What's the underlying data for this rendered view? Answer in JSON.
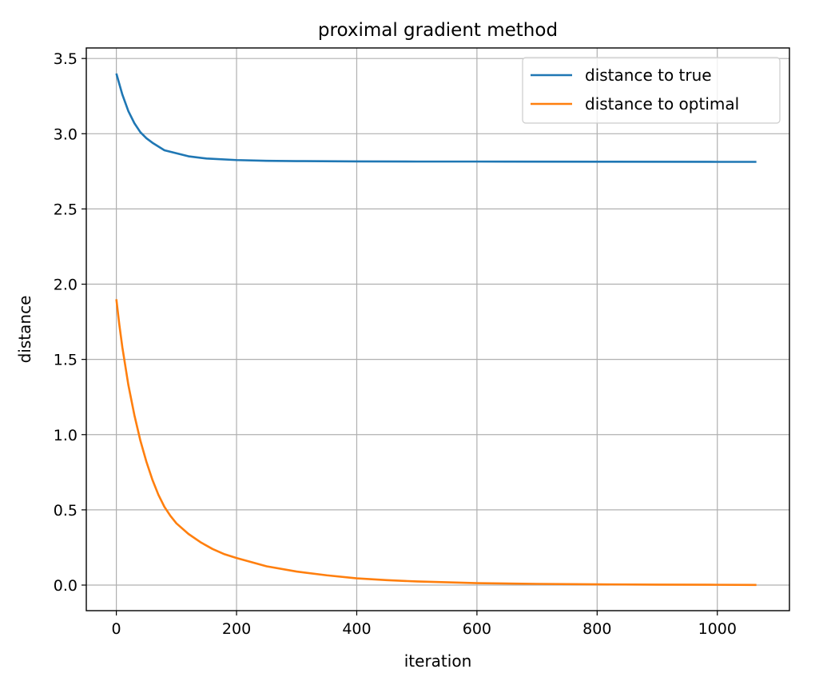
{
  "chart_data": {
    "type": "line",
    "title": "proximal gradient method",
    "xlabel": "iteration",
    "ylabel": "distance",
    "xlim": [
      -50,
      1120
    ],
    "ylim": [
      -0.17,
      3.57
    ],
    "xticks": [
      0,
      200,
      400,
      600,
      800,
      1000
    ],
    "yticks": [
      0.0,
      0.5,
      1.0,
      1.5,
      2.0,
      2.5,
      3.0,
      3.5
    ],
    "xtick_labels": [
      "0",
      "200",
      "400",
      "600",
      "800",
      "1000"
    ],
    "ytick_labels": [
      "0.0",
      "0.5",
      "1.0",
      "1.5",
      "2.0",
      "2.5",
      "3.0",
      "3.5"
    ],
    "grid": true,
    "legend_position": "upper right",
    "series": [
      {
        "name": "distance to true",
        "color": "#1f77b4",
        "x": [
          0,
          10,
          20,
          30,
          40,
          50,
          60,
          80,
          100,
          120,
          150,
          200,
          250,
          300,
          400,
          500,
          600,
          800,
          1000,
          1065
        ],
        "y": [
          3.4,
          3.26,
          3.15,
          3.07,
          3.01,
          2.97,
          2.94,
          2.89,
          2.87,
          2.85,
          2.835,
          2.825,
          2.82,
          2.818,
          2.816,
          2.815,
          2.815,
          2.814,
          2.813,
          2.813
        ]
      },
      {
        "name": "distance to optimal",
        "color": "#ff7f0e",
        "x": [
          0,
          5,
          10,
          20,
          30,
          40,
          50,
          60,
          70,
          80,
          90,
          100,
          120,
          140,
          160,
          180,
          200,
          250,
          300,
          350,
          400,
          450,
          500,
          600,
          700,
          800,
          900,
          1000,
          1065
        ],
        "y": [
          1.9,
          1.73,
          1.58,
          1.33,
          1.13,
          0.96,
          0.82,
          0.7,
          0.6,
          0.52,
          0.46,
          0.41,
          0.34,
          0.285,
          0.24,
          0.205,
          0.18,
          0.125,
          0.09,
          0.065,
          0.045,
          0.033,
          0.024,
          0.013,
          0.008,
          0.005,
          0.003,
          0.002,
          0.001
        ]
      }
    ]
  }
}
